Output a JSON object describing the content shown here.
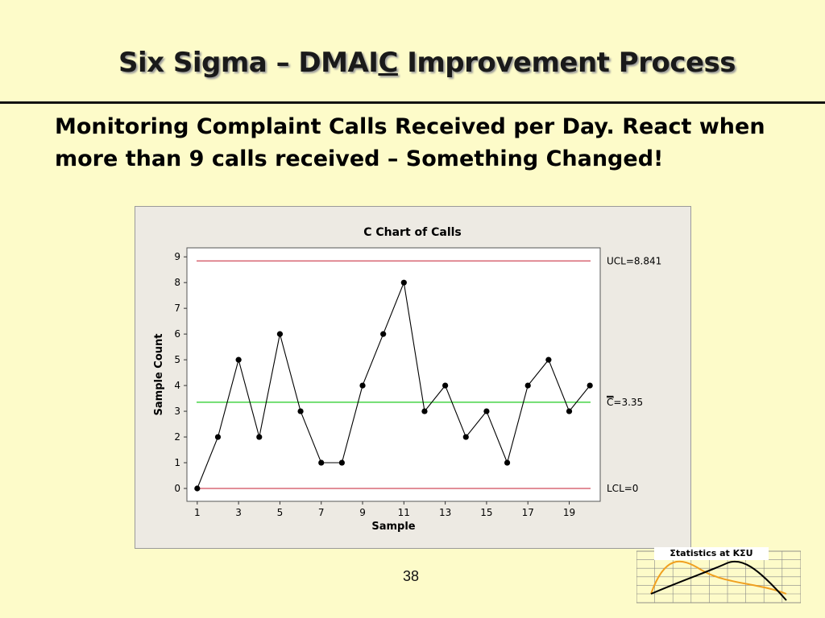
{
  "slide": {
    "title_before": "Six Sigma – DMAI",
    "title_underlined": "C",
    "title_after": " Improvement Process",
    "body": "Monitoring Complaint Calls Received per Day.  React when more than 9 calls received – Something Changed!",
    "page_number": "38"
  },
  "logo": {
    "label": "Σtatistics at KΣU",
    "colors": {
      "normal_curve": "#000000",
      "skewed_curve": "#f0a020"
    }
  },
  "chart_data": {
    "type": "line",
    "title": "C Chart of Calls",
    "xlabel": "Sample",
    "ylabel": "Sample Count",
    "x": [
      1,
      2,
      3,
      4,
      5,
      6,
      7,
      8,
      9,
      10,
      11,
      12,
      13,
      14,
      15,
      16,
      17,
      18,
      19,
      20
    ],
    "series": [
      {
        "values": [
          0,
          2,
          5,
          2,
          6,
          3,
          1,
          1,
          4,
          6,
          8,
          3,
          4,
          2,
          3,
          1,
          4,
          5,
          3,
          4
        ]
      }
    ],
    "x_ticks": [
      1,
      3,
      5,
      7,
      9,
      11,
      13,
      15,
      17,
      19
    ],
    "y_ticks": [
      0,
      1,
      2,
      3,
      4,
      5,
      6,
      7,
      8,
      9
    ],
    "xlim": [
      0.5,
      20.5
    ],
    "ylim": [
      -0.5,
      9.35
    ],
    "grid": false,
    "control_lines": [
      {
        "value": 8.841,
        "label": "UCL=8.841",
        "color": "#d04a5a"
      },
      {
        "value": 3.35,
        "label_symbol": "C",
        "label_value": "=3.35",
        "color": "#22cc22"
      },
      {
        "value": 0,
        "label": "LCL=0",
        "color": "#d04a5a"
      }
    ],
    "colors": {
      "series": "#000000",
      "plot_bg": "#ffffff",
      "panel_bg": "#edeae3"
    }
  }
}
